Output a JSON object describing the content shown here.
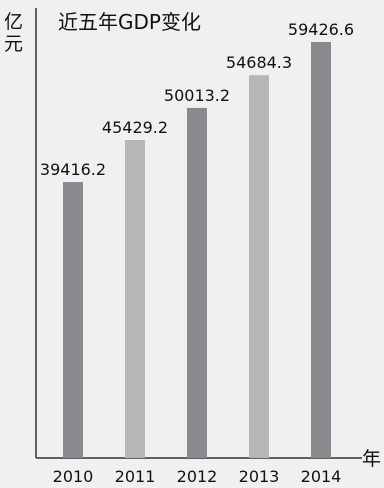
{
  "chart_data": {
    "type": "bar",
    "title": "近五年GDP变化",
    "ylabel": "亿元",
    "xlabel": "年",
    "categories": [
      "2010",
      "2011",
      "2012",
      "2013",
      "2014"
    ],
    "values": [
      39416.2,
      45429.2,
      50013.2,
      54684.3,
      59426.6
    ],
    "value_labels": [
      "39416.2",
      "45429.2",
      "50013.2",
      "54684.3",
      "59426.6"
    ],
    "bar_colors": [
      "#8a8a8e",
      "#b6b6b8",
      "#8a8a8e",
      "#b6b6b8",
      "#8a8a8e"
    ],
    "ylim": [
      0,
      62000
    ],
    "grid": false,
    "legend": "none"
  }
}
